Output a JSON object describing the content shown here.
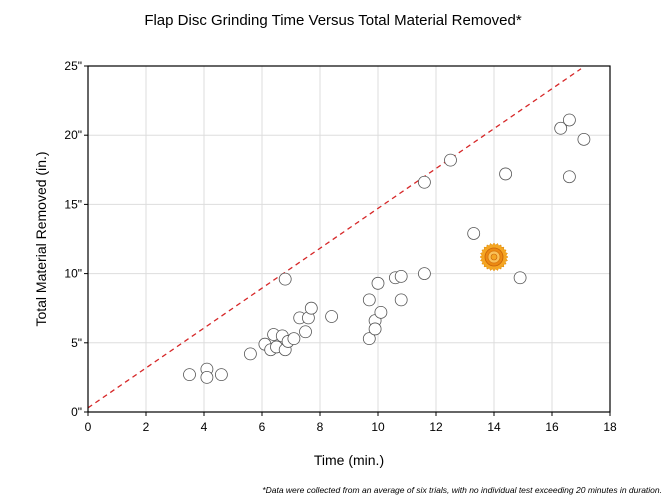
{
  "chart_data": {
    "type": "scatter",
    "title": "Flap Disc Grinding Time Versus Total Material Removed*",
    "xlabel": "Time (min.)",
    "ylabel": "Total Material Removed (in.)",
    "footnote": "*Data were collected from an average of six trials, with no individual test exceeding 20 minutes in duration.",
    "xlim": [
      0,
      18
    ],
    "ylim": [
      0,
      25
    ],
    "x_ticks": [
      0,
      2,
      4,
      6,
      8,
      10,
      12,
      14,
      16,
      18
    ],
    "y_ticks": [
      0,
      5,
      10,
      15,
      20,
      25
    ],
    "x_tick_labels": [
      "0",
      "2",
      "4",
      "6",
      "8",
      "10",
      "12",
      "14",
      "16",
      "18"
    ],
    "y_tick_labels": [
      "0\"",
      "5\"",
      "10\"",
      "15\"",
      "20\"",
      "25\""
    ],
    "grid": true,
    "reference_line": {
      "style": "dashed",
      "color": "#d62728",
      "points": [
        [
          0,
          0.3
        ],
        [
          17,
          24.8
        ]
      ]
    },
    "series": [
      {
        "marker": "hollow-circle",
        "color": "#555555",
        "points": [
          [
            3.5,
            2.7
          ],
          [
            4.1,
            3.1
          ],
          [
            4.1,
            2.5
          ],
          [
            4.6,
            2.7
          ],
          [
            5.6,
            4.2
          ],
          [
            6.1,
            4.9
          ],
          [
            6.3,
            4.5
          ],
          [
            6.4,
            5.6
          ],
          [
            6.5,
            4.7
          ],
          [
            6.7,
            5.5
          ],
          [
            6.8,
            4.5
          ],
          [
            6.8,
            9.6
          ],
          [
            6.9,
            5.1
          ],
          [
            7.1,
            5.3
          ],
          [
            7.3,
            6.8
          ],
          [
            7.5,
            5.8
          ],
          [
            7.6,
            6.8
          ],
          [
            7.7,
            7.5
          ],
          [
            8.4,
            6.9
          ],
          [
            9.7,
            5.3
          ],
          [
            9.7,
            8.1
          ],
          [
            9.9,
            6.6
          ],
          [
            9.9,
            6.0
          ],
          [
            10.0,
            9.3
          ],
          [
            10.1,
            7.2
          ],
          [
            10.6,
            9.7
          ],
          [
            10.8,
            8.1
          ],
          [
            10.8,
            9.8
          ],
          [
            11.6,
            10.0
          ],
          [
            11.6,
            16.6
          ],
          [
            12.5,
            18.2
          ],
          [
            13.3,
            12.9
          ],
          [
            14.4,
            17.2
          ],
          [
            14.9,
            9.7
          ],
          [
            16.3,
            20.5
          ],
          [
            16.6,
            21.1
          ],
          [
            16.6,
            17.0
          ],
          [
            17.1,
            19.7
          ]
        ]
      },
      {
        "marker": "highlight-circle",
        "color": "#f39c12",
        "points": [
          [
            14.0,
            11.2
          ]
        ]
      }
    ]
  }
}
